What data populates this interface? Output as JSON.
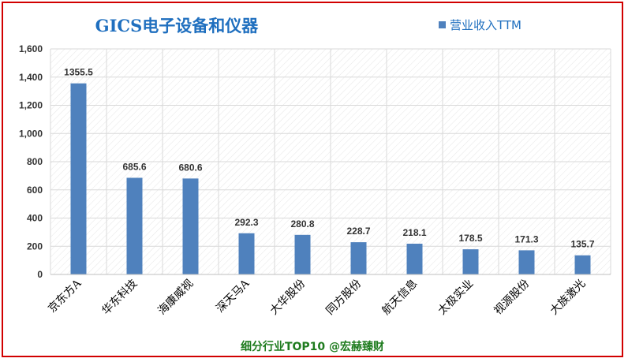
{
  "colors": {
    "title": "#1f6fbf",
    "bar": "#4f81bd",
    "footer": "#1e7b1e",
    "frame": "#d10000",
    "grid": "#d9d9d9",
    "hatch": "#e6e6e6"
  },
  "footer": "细分行业TOP10 @宏赫臻财",
  "chart_data": {
    "type": "bar",
    "title": "GICS电子设备和仪器",
    "categories": [
      "京东方A",
      "华东科技",
      "海康威视",
      "深天马A",
      "大华股份",
      "同方股份",
      "航天信息",
      "太极实业",
      "视源股份",
      "大族激光"
    ],
    "series": [
      {
        "name": "营业收入TTM",
        "values": [
          1355.5,
          685.6,
          680.6,
          292.3,
          280.8,
          228.7,
          218.1,
          178.5,
          171.3,
          135.7
        ],
        "labels": [
          "1355.5",
          "685.6",
          "680.6",
          "292.3",
          "280.8",
          "228.7",
          "218.1",
          "178.5",
          "171.3",
          "135.7"
        ]
      }
    ],
    "ylim": [
      0,
      1600
    ],
    "yticks": [
      "0",
      "200",
      "400",
      "600",
      "800",
      "1,000",
      "1,200",
      "1,400",
      "1,600"
    ],
    "xlabel": "",
    "ylabel": "",
    "grid": true,
    "legend_position": "top-right"
  }
}
